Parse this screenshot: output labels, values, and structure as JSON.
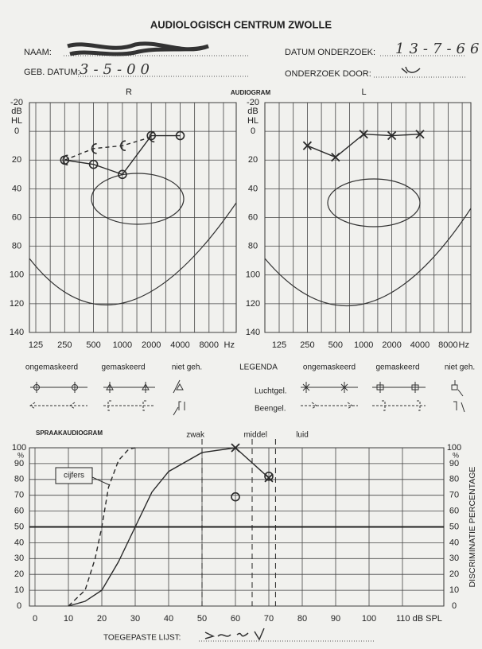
{
  "header": {
    "title": "AUDIOLOGISCH CENTRUM ZWOLLE",
    "name_label": "NAAM:",
    "birth_label": "GEB. DATUM:",
    "birth_value": "3-5-00",
    "date_label": "DATUM ONDERZOEK:",
    "date_value": "13-7-66",
    "examiner_label": "ONDERZOEK DOOR:"
  },
  "section_label": "AUDIOGRAM",
  "legend": {
    "title": "LEGENDA",
    "right_columns": [
      "ongemaskeerd",
      "gemaskeerd",
      "niet geh."
    ],
    "left_columns": [
      "ongemaskeerd",
      "gemaskeerd",
      "niet geh."
    ],
    "rows": [
      "Luchtgel.",
      "Beengel."
    ]
  },
  "chart_data": [
    {
      "type": "line",
      "title": "R",
      "y_label": [
        "dB",
        "HL"
      ],
      "categories": [
        "125",
        "250",
        "500",
        "1000",
        "2000",
        "4000",
        "8000"
      ],
      "x_unit": "Hz",
      "ylim": [
        140,
        -20
      ],
      "yticks": [
        -20,
        0,
        20,
        40,
        60,
        80,
        100,
        120,
        140
      ],
      "grid": true,
      "series": [
        {
          "color": "#2a2a2a",
          "marker": "circle",
          "dash": false,
          "values": [
            null,
            20,
            23,
            30,
            3,
            3,
            null
          ]
        },
        {
          "color": "#2a2a2a",
          "marker": "bracket",
          "dash": true,
          "values": [
            null,
            20,
            12,
            10,
            4,
            null,
            null
          ]
        }
      ]
    },
    {
      "type": "line",
      "title": "L",
      "y_label": [
        "dB",
        "HL"
      ],
      "categories": [
        "125",
        "250",
        "500",
        "1000",
        "2000",
        "4000",
        "8000"
      ],
      "x_unit": "Hz",
      "ylim": [
        140,
        -20
      ],
      "yticks": [
        -20,
        0,
        20,
        40,
        60,
        80,
        100,
        120,
        140
      ],
      "grid": true,
      "series": [
        {
          "color": "#2a2a2a",
          "marker": "cross",
          "dash": false,
          "values": [
            null,
            10,
            18,
            2,
            3,
            2,
            null
          ]
        }
      ]
    },
    {
      "type": "speech",
      "title": "SPRAAKAUDIOGRAM",
      "y_unit": "%",
      "y2_label": "DISCRIMINATIE PERCENTAGE",
      "xlim": [
        0,
        110
      ],
      "xticks": [
        0,
        10,
        20,
        30,
        40,
        50,
        60,
        70,
        80,
        90,
        100,
        {
          "value": 110,
          "label": "110 dB SPL"
        }
      ],
      "ylim": [
        0,
        100
      ],
      "yticks": [
        0,
        10,
        20,
        30,
        40,
        50,
        60,
        70,
        80,
        90,
        100
      ],
      "reference_line": 50,
      "zones": [
        {
          "value": 48,
          "label": "zwak"
        },
        {
          "value": 66,
          "label": "middel"
        },
        {
          "value": 80,
          "label": "luid"
        }
      ],
      "zone_boundaries": [
        50,
        65,
        72
      ],
      "annotation": "cijfers",
      "series": [
        {
          "color": "#2a2a2a",
          "dash": true,
          "marker": "none",
          "x": [
            10,
            15,
            18,
            20,
            22,
            25,
            28,
            30
          ],
          "values": [
            0,
            10,
            30,
            50,
            75,
            92,
            99,
            100
          ]
        },
        {
          "color": "#2a2a2a",
          "dash": false,
          "marker": "none",
          "x": [
            10,
            15,
            20,
            25,
            30,
            35,
            40,
            50,
            60
          ],
          "values": [
            0,
            3,
            10,
            28,
            50,
            72,
            85,
            97,
            100
          ]
        },
        {
          "color": "#2a2a2a",
          "dash": false,
          "marker": "cross",
          "x": [
            60,
            70
          ],
          "values": [
            100,
            81
          ]
        },
        {
          "color": "#2a2a2a",
          "dash": false,
          "marker": "circle",
          "line": false,
          "x": [
            60,
            70
          ],
          "values": [
            69,
            82
          ]
        }
      ]
    }
  ],
  "footer": {
    "label": "TOEGEPASTE LIJST:"
  }
}
